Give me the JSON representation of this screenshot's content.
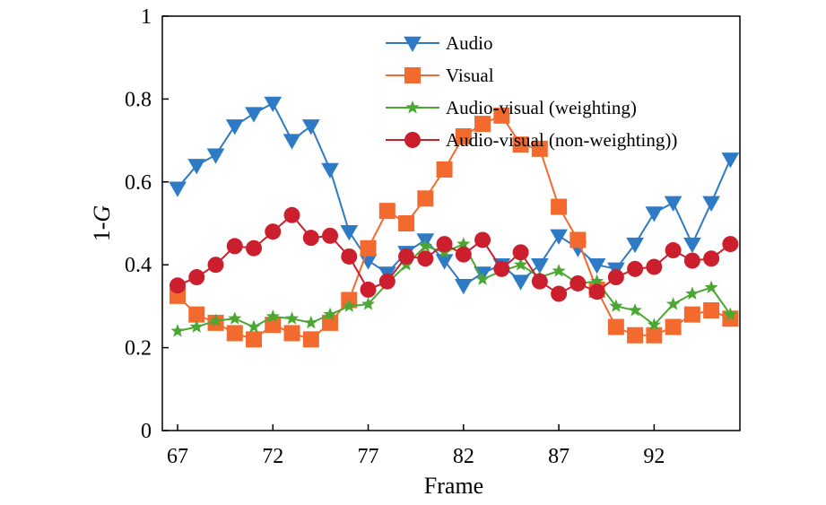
{
  "chart_data": {
    "type": "line",
    "xlabel": "Frame",
    "ylabel_prefix": "1-",
    "ylabel_var": "G",
    "xlim": [
      66.2,
      96.5
    ],
    "ylim": [
      0,
      1
    ],
    "x_ticks": [
      67,
      72,
      77,
      82,
      87,
      92
    ],
    "y_ticks": [
      0,
      0.2,
      0.4,
      0.6,
      0.8,
      1
    ],
    "y_tick_labels": [
      "0",
      "0.2",
      "0.4",
      "0.6",
      "0.8",
      "1"
    ],
    "grid": false,
    "legend_position": "top",
    "x": [
      67,
      68,
      69,
      70,
      71,
      72,
      73,
      74,
      75,
      76,
      77,
      78,
      79,
      80,
      81,
      82,
      83,
      84,
      85,
      86,
      87,
      88,
      89,
      90,
      91,
      92,
      93,
      94,
      95,
      96
    ],
    "series": [
      {
        "name": "Audio",
        "color": "#2e7ac4",
        "marker": "triangle-down",
        "values": [
          0.585,
          0.64,
          0.665,
          0.735,
          0.765,
          0.79,
          0.7,
          0.735,
          0.63,
          0.48,
          0.41,
          0.38,
          0.43,
          0.46,
          0.41,
          0.35,
          0.38,
          0.4,
          0.36,
          0.4,
          0.47,
          0.44,
          0.4,
          0.39,
          0.45,
          0.525,
          0.55,
          0.45,
          0.55,
          0.655
        ]
      },
      {
        "name": "Visual",
        "color": "#f26a2e",
        "marker": "square",
        "values": [
          0.325,
          0.28,
          0.26,
          0.235,
          0.22,
          0.255,
          0.235,
          0.22,
          0.26,
          0.315,
          0.44,
          0.53,
          0.5,
          0.56,
          0.63,
          0.71,
          0.74,
          0.76,
          0.69,
          0.68,
          0.54,
          0.46,
          0.34,
          0.25,
          0.23,
          0.23,
          0.25,
          0.28,
          0.29,
          0.27
        ]
      },
      {
        "name": "Audio-visual (weighting)",
        "color": "#4aa832",
        "marker": "star",
        "values": [
          0.24,
          0.25,
          0.265,
          0.27,
          0.25,
          0.275,
          0.27,
          0.26,
          0.28,
          0.3,
          0.305,
          0.355,
          0.4,
          0.445,
          0.43,
          0.45,
          0.365,
          0.385,
          0.4,
          0.37,
          0.385,
          0.355,
          0.36,
          0.3,
          0.29,
          0.255,
          0.305,
          0.33,
          0.345,
          0.28
        ]
      },
      {
        "name": "Audio-visual (non-weighting))",
        "color": "#cc1f2e",
        "marker": "circle",
        "values": [
          0.35,
          0.37,
          0.4,
          0.445,
          0.44,
          0.48,
          0.52,
          0.465,
          0.47,
          0.42,
          0.34,
          0.36,
          0.42,
          0.415,
          0.45,
          0.425,
          0.46,
          0.39,
          0.43,
          0.36,
          0.33,
          0.355,
          0.335,
          0.37,
          0.39,
          0.395,
          0.435,
          0.41,
          0.415,
          0.45
        ]
      }
    ]
  }
}
